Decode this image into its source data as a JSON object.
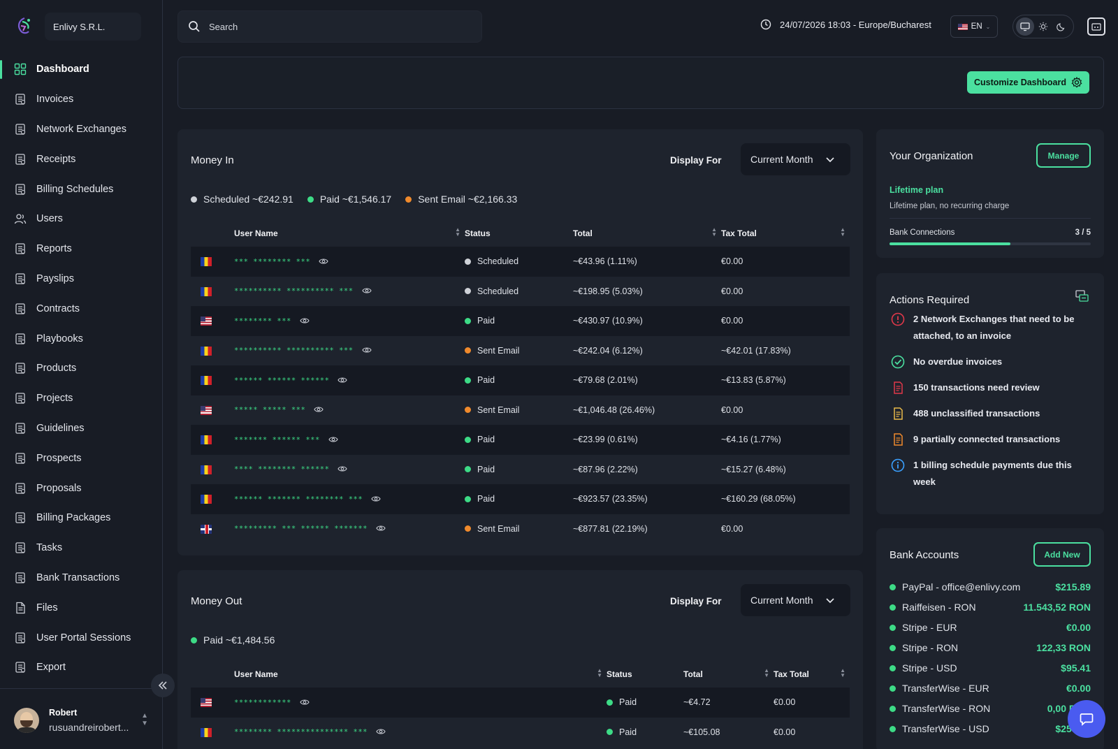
{
  "brand": {
    "org_name": "Enlivy S.R.L."
  },
  "sidebar": {
    "items": [
      {
        "label": "Dashboard",
        "icon": "dashboard-icon",
        "active": true
      },
      {
        "label": "Invoices",
        "icon": "invoice-icon"
      },
      {
        "label": "Network Exchanges",
        "icon": "network-exchange-icon"
      },
      {
        "label": "Receipts",
        "icon": "receipt-icon"
      },
      {
        "label": "Billing Schedules",
        "icon": "billing-schedule-icon"
      },
      {
        "label": "Users",
        "icon": "users-icon"
      },
      {
        "label": "Reports",
        "icon": "reports-icon"
      },
      {
        "label": "Payslips",
        "icon": "payslip-icon"
      },
      {
        "label": "Contracts",
        "icon": "contract-icon"
      },
      {
        "label": "Playbooks",
        "icon": "playbook-icon"
      },
      {
        "label": "Products",
        "icon": "product-icon"
      },
      {
        "label": "Projects",
        "icon": "project-icon"
      },
      {
        "label": "Guidelines",
        "icon": "guideline-icon"
      },
      {
        "label": "Prospects",
        "icon": "prospect-icon"
      },
      {
        "label": "Proposals",
        "icon": "proposal-icon"
      },
      {
        "label": "Billing Packages",
        "icon": "billing-package-icon"
      },
      {
        "label": "Tasks",
        "icon": "task-icon"
      },
      {
        "label": "Bank Transactions",
        "icon": "bank-transaction-icon"
      },
      {
        "label": "Files",
        "icon": "file-icon"
      },
      {
        "label": "User Portal Sessions",
        "icon": "portal-session-icon"
      },
      {
        "label": "Export",
        "icon": "export-icon"
      }
    ],
    "user": {
      "name": "Robert",
      "email": "rusuandreirobert..."
    }
  },
  "topbar": {
    "search_placeholder": "Search",
    "datetime": "24/07/2026 18:03  -  Europe/Bucharest",
    "language": "EN"
  },
  "hero": {
    "customize_label": "Customize Dashboard"
  },
  "money_in": {
    "title": "Money In",
    "display_for_label": "Display For",
    "period": "Current Month",
    "legend": [
      {
        "label": "Scheduled ~€242.91",
        "color": "gray"
      },
      {
        "label": "Paid ~€1,546.17",
        "color": "green"
      },
      {
        "label": "Sent Email ~€2,166.33",
        "color": "orange"
      }
    ],
    "columns": [
      "User Name",
      "Status",
      "Total",
      "Tax Total"
    ],
    "rows": [
      {
        "flag": "ro",
        "user": "*** ******** ***",
        "status": "Scheduled",
        "status_color": "gray",
        "total": "~€43.96  (1.11%)",
        "tax": "€0.00"
      },
      {
        "flag": "ro",
        "user": "********** ********** ***",
        "status": "Scheduled",
        "status_color": "gray",
        "total": "~€198.95  (5.03%)",
        "tax": "€0.00"
      },
      {
        "flag": "us",
        "user": "******** ***",
        "status": "Paid",
        "status_color": "green",
        "total": "~€430.97  (10.9%)",
        "tax": "€0.00"
      },
      {
        "flag": "ro",
        "user": "********** ********** ***",
        "status": "Sent Email",
        "status_color": "orange",
        "total": "~€242.04  (6.12%)",
        "tax": "~€42.01  (17.83%)"
      },
      {
        "flag": "ro",
        "user": "****** ****** ******",
        "status": "Paid",
        "status_color": "green",
        "total": "~€79.68  (2.01%)",
        "tax": "~€13.83  (5.87%)"
      },
      {
        "flag": "us",
        "user": "***** ***** ***",
        "status": "Sent Email",
        "status_color": "orange",
        "total": "~€1,046.48  (26.46%)",
        "tax": "€0.00"
      },
      {
        "flag": "ro",
        "user": "******* ****** ***",
        "status": "Paid",
        "status_color": "green",
        "total": "~€23.99  (0.61%)",
        "tax": "~€4.16  (1.77%)"
      },
      {
        "flag": "ro",
        "user": "**** ******** ******",
        "status": "Paid",
        "status_color": "green",
        "total": "~€87.96  (2.22%)",
        "tax": "~€15.27  (6.48%)"
      },
      {
        "flag": "ro",
        "user": "****** ******* ******** ***",
        "status": "Paid",
        "status_color": "green",
        "total": "~€923.57  (23.35%)",
        "tax": "~€160.29  (68.05%)"
      },
      {
        "flag": "uk",
        "user": "********* *** ****** *******",
        "status": "Sent Email",
        "status_color": "orange",
        "total": "~€877.81  (22.19%)",
        "tax": "€0.00"
      }
    ]
  },
  "money_out": {
    "title": "Money Out",
    "display_for_label": "Display For",
    "period": "Current Month",
    "legend": [
      {
        "label": "Paid ~€1,484.56",
        "color": "green"
      }
    ],
    "columns": [
      "User Name",
      "Status",
      "Total",
      "Tax Total"
    ],
    "rows": [
      {
        "flag": "us",
        "user": "************",
        "status": "Paid",
        "status_color": "green",
        "total": "~€4.72",
        "tax": "€0.00"
      },
      {
        "flag": "ro",
        "user": "******** *************** ***",
        "status": "Paid",
        "status_color": "green",
        "total": "~€105.08",
        "tax": "€0.00"
      }
    ]
  },
  "organization": {
    "title": "Your Organization",
    "manage_label": "Manage",
    "plan": "Lifetime plan",
    "plan_desc": "Lifetime plan, no recurring charge",
    "bank_connections_label": "Bank Connections",
    "bank_connections_value": "3 / 5",
    "bank_connections_fraction": 0.6
  },
  "actions": {
    "title": "Actions Required",
    "items": [
      {
        "text": "2 Network Exchanges that need to be attached, to an invoice",
        "icon": "alert-circle-icon",
        "color": "#e0384a"
      },
      {
        "text": "No overdue invoices",
        "icon": "check-circle-icon",
        "color": "#4be0a0"
      },
      {
        "text": "150 transactions need review",
        "icon": "review-transaction-icon",
        "color": "#e0384a"
      },
      {
        "text": "488 unclassified transactions",
        "icon": "unclassified-transaction-icon",
        "color": "#e9b949"
      },
      {
        "text": "9 partially connected transactions",
        "icon": "partial-transaction-icon",
        "color": "#f08a2c"
      },
      {
        "text": "1 billing schedule payments due this week",
        "icon": "info-circle-icon",
        "color": "#3aa0ff"
      }
    ]
  },
  "bank_accounts": {
    "title": "Bank Accounts",
    "add_label": "Add New",
    "items": [
      {
        "name": "PayPal - office@enlivy.com",
        "amount": "$215.89"
      },
      {
        "name": "Raiffeisen - RON",
        "amount": "11.543,52 RON"
      },
      {
        "name": "Stripe - EUR",
        "amount": "€0.00"
      },
      {
        "name": "Stripe - RON",
        "amount": "122,33 RON"
      },
      {
        "name": "Stripe - USD",
        "amount": "$95.41"
      },
      {
        "name": "TransferWise - EUR",
        "amount": "€0.00"
      },
      {
        "name": "TransferWise - RON",
        "amount": "0,00 RON"
      },
      {
        "name": "TransferWise - USD",
        "amount": "$253.00"
      }
    ]
  }
}
